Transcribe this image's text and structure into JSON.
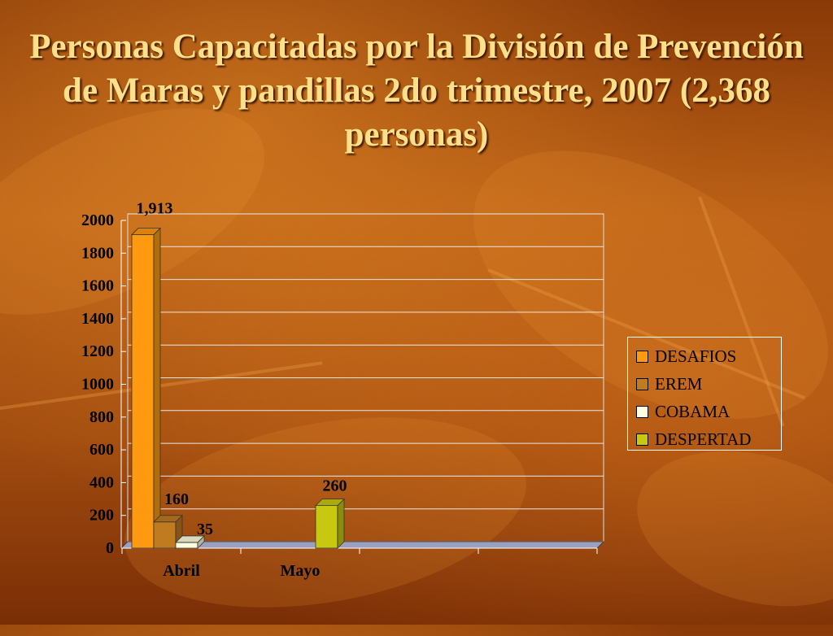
{
  "slide": {
    "title": "Personas Capacitadas por la División de Prevención de Maras y pandillas 2do trimestre, 2007 (2,368 personas)"
  },
  "chart_data": {
    "type": "bar",
    "categories": [
      "Abril",
      "Mayo"
    ],
    "series": [
      {
        "name": "DESAFIOS",
        "color": "#ff9a10",
        "values": [
          1913,
          null
        ],
        "labels": [
          "1,913",
          ""
        ]
      },
      {
        "name": "EREM",
        "color": "#c07a20",
        "values": [
          160,
          null
        ],
        "labels": [
          "160",
          ""
        ]
      },
      {
        "name": "COBAMA",
        "color": "#ffffe0",
        "values": [
          35,
          null
        ],
        "labels": [
          "35",
          ""
        ]
      },
      {
        "name": "DESPERTAD",
        "color": "#c8c810",
        "values": [
          null,
          260
        ],
        "labels": [
          "",
          "260"
        ]
      }
    ],
    "y_ticks": [
      "0",
      "200",
      "400",
      "600",
      "800",
      "1000",
      "1200",
      "1400",
      "1600",
      "1800",
      "2000"
    ],
    "ylim": [
      0,
      2000
    ],
    "grid": true,
    "legend_position": "right"
  }
}
